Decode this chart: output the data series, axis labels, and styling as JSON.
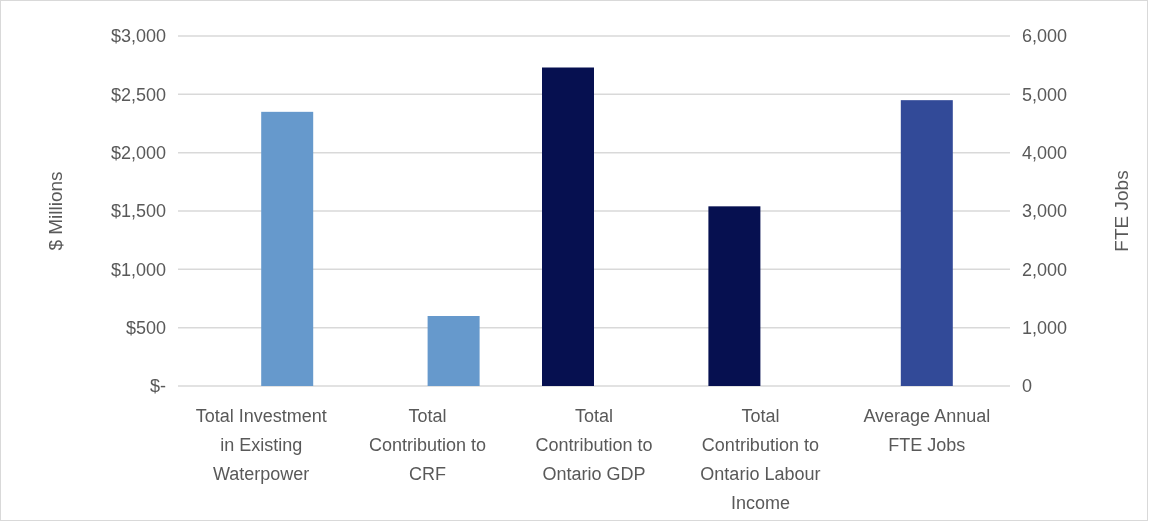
{
  "chart_data": {
    "type": "bar",
    "categories": [
      "Total Investment in Existing Waterpower",
      "Total Contribution to CRF",
      "Total Contribution to Ontario GDP",
      "Total Contribution to Ontario Labour Income",
      "Average Annual FTE Jobs"
    ],
    "series": [
      {
        "color": "#061050",
        "values": [
          null,
          null,
          2730,
          1540,
          null
        ]
      },
      {
        "color": "#6699cc",
        "values": [
          2350,
          600,
          null,
          null,
          null
        ]
      },
      {
        "color": "#324a98",
        "values": [
          null,
          null,
          null,
          null,
          4900
        ],
        "axis": "y2"
      }
    ],
    "ylabel": "$ Millions",
    "y2label": "FTE Jobs",
    "ylim": [
      0,
      3000
    ],
    "yticks": [
      {
        "value": 0,
        "label": "$-"
      },
      {
        "value": 500,
        "label": "$500"
      },
      {
        "value": 1000,
        "label": "$1,000"
      },
      {
        "value": 1500,
        "label": "$1,500"
      },
      {
        "value": 2000,
        "label": "$2,000"
      },
      {
        "value": 2500,
        "label": "$2,500"
      },
      {
        "value": 3000,
        "label": "$3,000"
      }
    ],
    "y2lim": [
      0,
      6000
    ],
    "y2ticks": [
      0,
      {
        "value": 1000,
        "label": "1,000"
      },
      {
        "value": 2000,
        "label": "2,000"
      },
      {
        "value": 3000,
        "label": "3,000"
      },
      {
        "value": 4000,
        "label": "4,000"
      },
      {
        "value": 5000,
        "label": "5,000"
      },
      {
        "value": 6000,
        "label": "6,000"
      }
    ],
    "grid": "y"
  }
}
